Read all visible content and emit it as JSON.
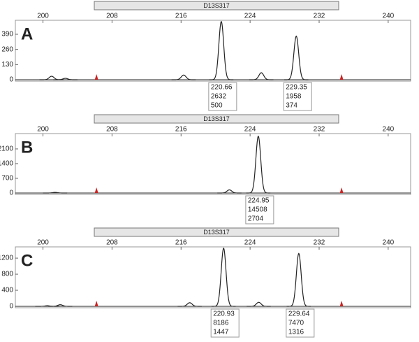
{
  "chart_data": [
    {
      "type": "electropherogram",
      "panel_label": "A",
      "title": "D13S317",
      "xlim": [
        196.8,
        242.6
      ],
      "xticks": [
        200,
        208,
        216,
        224,
        232,
        240
      ],
      "ylim": [
        0,
        510
      ],
      "yticks": [
        0,
        130,
        260,
        390
      ],
      "color": "#222222",
      "peaks": [
        {
          "size": 220.66,
          "area": 2632,
          "height": 500
        },
        {
          "size": 229.35,
          "area": 1958,
          "height": 374
        }
      ],
      "minor_peaks": {
        "x": [
          201,
          202.6,
          216.3,
          225.3
        ],
        "values": [
          30,
          12,
          40,
          60
        ]
      },
      "bin_markers": {
        "x": [
          206.2,
          234.6
        ],
        "color": "#cc2222"
      }
    },
    {
      "type": "electropherogram",
      "panel_label": "B",
      "title": "D13S317",
      "xlim": [
        196.8,
        242.6
      ],
      "xticks": [
        200,
        208,
        216,
        224,
        232,
        240
      ],
      "ylim": [
        0,
        2830
      ],
      "yticks": [
        0,
        700,
        1400,
        2100
      ],
      "color": "#222222",
      "peaks": [
        {
          "size": 224.95,
          "area": 14508,
          "height": 2704
        }
      ],
      "minor_peaks": {
        "x": [
          201.4,
          221.6
        ],
        "values": [
          30,
          150
        ]
      },
      "bin_markers": {
        "x": [
          206.2,
          234.6
        ],
        "color": "#cc2222"
      }
    },
    {
      "type": "electropherogram",
      "panel_label": "C",
      "title": "D13S317",
      "xlim": [
        196.8,
        242.6
      ],
      "xticks": [
        200,
        208,
        216,
        224,
        232,
        240
      ],
      "ylim": [
        0,
        1480
      ],
      "yticks": [
        0,
        400,
        800,
        1200
      ],
      "color": "#222222",
      "peaks": [
        {
          "size": 220.93,
          "area": 8186,
          "height": 1447
        },
        {
          "size": 229.64,
          "area": 7470,
          "height": 1316
        }
      ],
      "minor_peaks": {
        "x": [
          202,
          217,
          225,
          200.5
        ],
        "values": [
          40,
          90,
          100,
          15
        ]
      },
      "bin_markers": {
        "x": [
          206.2,
          234.6
        ],
        "color": "#cc2222"
      }
    }
  ]
}
